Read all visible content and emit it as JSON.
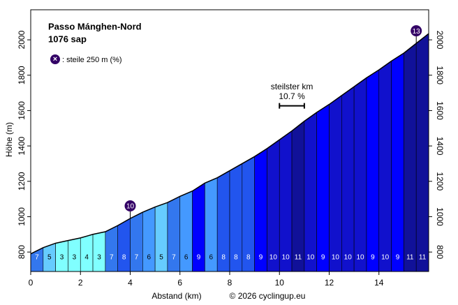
{
  "chart_data": {
    "type": "profile",
    "title": "Passo Mánghen-Nord",
    "subtitle": "1076 sap",
    "legend_symbol": "×",
    "legend_text": ": steile 250 m (%)",
    "xlabel": "Abstand (km)",
    "ylabel": "Höhe (m)",
    "credit": "© 2026 cyclingup.eu",
    "x": [
      0,
      0.5,
      1,
      1.5,
      2,
      2.5,
      3,
      3.5,
      4,
      4.5,
      5,
      5.5,
      6,
      6.5,
      7,
      7.5,
      8,
      8.5,
      9,
      9.5,
      10,
      10.5,
      11,
      11.5,
      12,
      12.5,
      13,
      13.5,
      14,
      14.5,
      15,
      15.5,
      16
    ],
    "elevation": [
      790,
      825,
      850,
      865,
      880,
      900,
      915,
      950,
      990,
      1025,
      1055,
      1080,
      1115,
      1145,
      1190,
      1220,
      1260,
      1300,
      1340,
      1385,
      1435,
      1485,
      1540,
      1590,
      1635,
      1685,
      1735,
      1785,
      1830,
      1880,
      1925,
      1980,
      2035
    ],
    "gradients": [
      7,
      5,
      3,
      3,
      4,
      3,
      7,
      8,
      7,
      6,
      5,
      7,
      6,
      9,
      6,
      8,
      8,
      8,
      9,
      10,
      10,
      11,
      10,
      9,
      10,
      10,
      10,
      9,
      10,
      9,
      11,
      11
    ],
    "segment_colors": [
      "#3377ee",
      "#66ccff",
      "#80ffff",
      "#80ffff",
      "#80ffff",
      "#80ffff",
      "#3377ee",
      "#2255ee",
      "#3377ee",
      "#4499ff",
      "#66ccff",
      "#3377ee",
      "#4499ff",
      "#0000ff",
      "#4499ff",
      "#2255ee",
      "#2255ee",
      "#2255ee",
      "#0000ff",
      "#1111cc",
      "#1111cc",
      "#111199",
      "#1111cc",
      "#0000ff",
      "#1111cc",
      "#1111cc",
      "#1111cc",
      "#0000ff",
      "#1111cc",
      "#0000ff",
      "#111199",
      "#111199"
    ],
    "markers": [
      {
        "label": 10,
        "x": 4
      },
      {
        "label": 13,
        "x": 15.5
      }
    ],
    "steepest_km": {
      "label": "steilster km",
      "value_label": "10.7 %",
      "value": 10.7,
      "x": [
        10,
        11
      ]
    },
    "marker_color": "#330066",
    "xlim": [
      0,
      16
    ],
    "xticks": [
      0,
      2,
      4,
      6,
      8,
      10,
      12,
      14
    ],
    "ylim": [
      690,
      2170
    ],
    "yticks": [
      800,
      1000,
      1200,
      1400,
      1600,
      1800,
      2000
    ]
  }
}
